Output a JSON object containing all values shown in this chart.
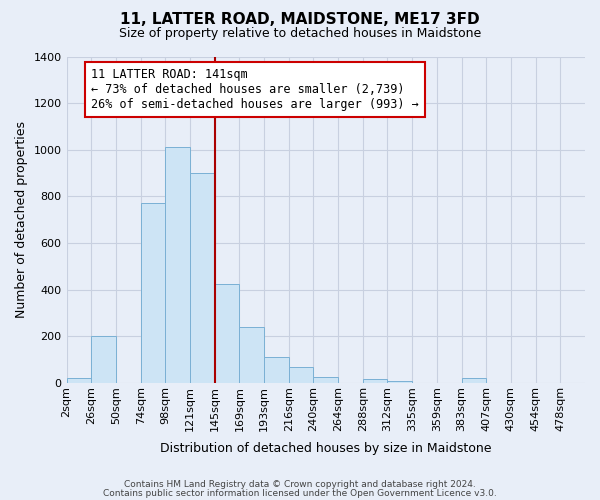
{
  "title": "11, LATTER ROAD, MAIDSTONE, ME17 3FD",
  "subtitle": "Size of property relative to detached houses in Maidstone",
  "xlabel": "Distribution of detached houses by size in Maidstone",
  "ylabel": "Number of detached properties",
  "bar_labels": [
    "2sqm",
    "26sqm",
    "50sqm",
    "74sqm",
    "98sqm",
    "121sqm",
    "145sqm",
    "169sqm",
    "193sqm",
    "216sqm",
    "240sqm",
    "264sqm",
    "288sqm",
    "312sqm",
    "335sqm",
    "359sqm",
    "383sqm",
    "407sqm",
    "430sqm",
    "454sqm",
    "478sqm"
  ],
  "bar_values": [
    20,
    200,
    0,
    770,
    1010,
    900,
    425,
    240,
    110,
    70,
    25,
    0,
    15,
    10,
    0,
    0,
    20,
    0,
    0,
    0,
    0
  ],
  "bar_color": "#cde4f5",
  "bar_edge_color": "#7ab0d4",
  "vline_x": 6.0,
  "vline_color": "#aa0000",
  "annotation_title": "11 LATTER ROAD: 141sqm",
  "annotation_line1": "← 73% of detached houses are smaller (2,739)",
  "annotation_line2": "26% of semi-detached houses are larger (993) →",
  "annotation_box_color": "white",
  "annotation_box_edge": "#cc0000",
  "ylim": [
    0,
    1400
  ],
  "yticks": [
    0,
    200,
    400,
    600,
    800,
    1000,
    1200,
    1400
  ],
  "footer1": "Contains HM Land Registry data © Crown copyright and database right 2024.",
  "footer2": "Contains public sector information licensed under the Open Government Licence v3.0.",
  "bg_color": "#e8eef8",
  "grid_color": "#c8d0e0",
  "title_fontsize": 11,
  "subtitle_fontsize": 9,
  "ylabel_fontsize": 9,
  "xlabel_fontsize": 9,
  "tick_fontsize": 8,
  "annot_fontsize": 8.5,
  "footer_fontsize": 6.5
}
